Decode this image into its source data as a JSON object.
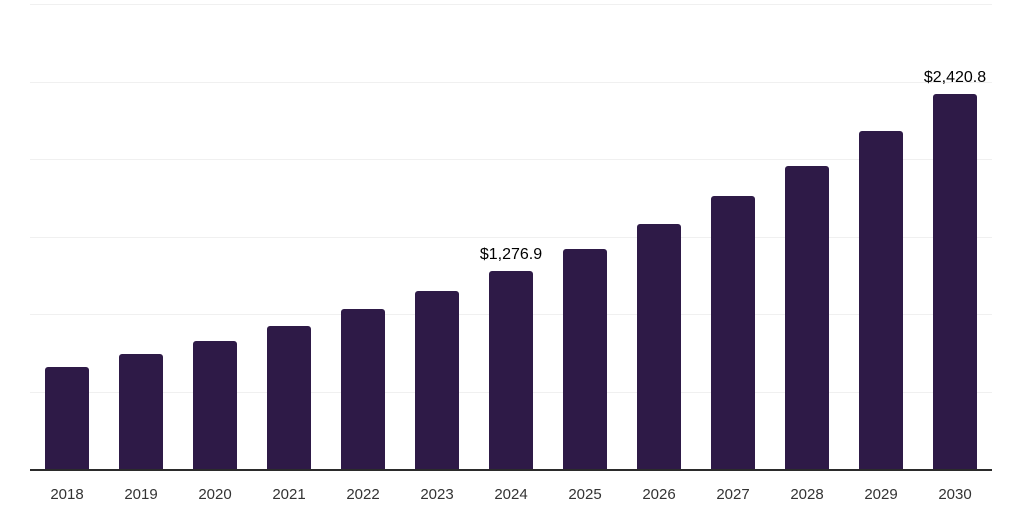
{
  "chart_data": {
    "type": "bar",
    "title": "",
    "xlabel": "",
    "ylabel": "",
    "categories": [
      "2018",
      "2019",
      "2020",
      "2021",
      "2022",
      "2023",
      "2024",
      "2025",
      "2026",
      "2027",
      "2028",
      "2029",
      "2030"
    ],
    "values": [
      660,
      742,
      826,
      922,
      1030,
      1146,
      1276.9,
      1421,
      1581,
      1760,
      1958,
      2182,
      2420.8
    ],
    "data_labels": [
      {
        "category": "2024",
        "text": "$1,276.9"
      },
      {
        "category": "2030",
        "text": "$2,420.8"
      }
    ],
    "ylim": [
      0,
      3000
    ],
    "gridline_step": 500,
    "grid": true,
    "legend": false,
    "y_tick_labels_visible": false,
    "colors": {
      "bar": "#2E1A47",
      "gridline": "#F0F0F0",
      "axis": "#2B2B2B",
      "x_tick_label": "#333333",
      "data_label": "#000000",
      "background": "#FFFFFF"
    }
  }
}
